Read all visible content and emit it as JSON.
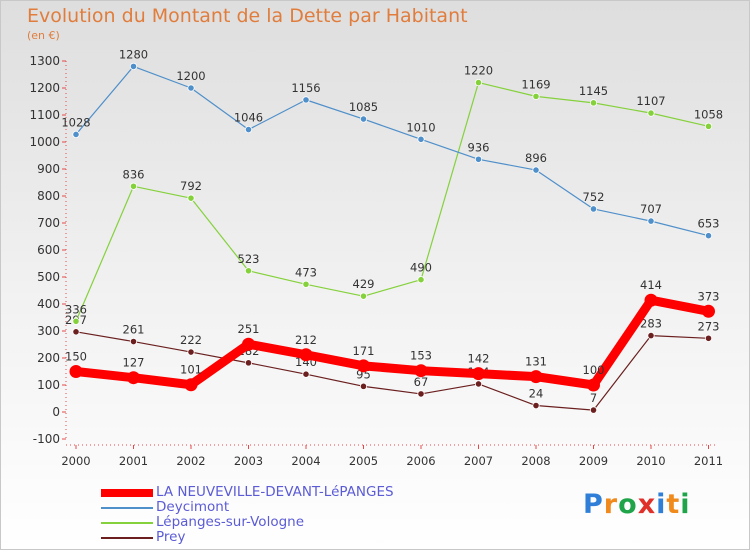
{
  "title": "Evolution du Montant de la Dette par Habitant",
  "subtitle": "(en €)",
  "logo_text": "Proxiti",
  "chart_data": {
    "type": "line",
    "ylim": [
      -100,
      1300
    ],
    "ytick_step": 100,
    "grid": false,
    "legend_position": "bottom-left",
    "x": [
      "2000",
      "2001",
      "2002",
      "2003",
      "2004",
      "2005",
      "2006",
      "2007",
      "2008",
      "2009",
      "2010",
      "2011"
    ],
    "series": [
      {
        "name": "LA NEUVEVILLE-DEVANT-LéPANGES",
        "color": "#ff0000",
        "values": [
          150,
          127,
          101,
          251,
          212,
          171,
          153,
          142,
          131,
          100,
          414,
          373
        ]
      },
      {
        "name": "Deycimont",
        "color": "#4f8fca",
        "values": [
          1028,
          1280,
          1200,
          1046,
          1156,
          1085,
          1010,
          936,
          896,
          752,
          707,
          653
        ]
      },
      {
        "name": "Lépanges-sur-Vologne",
        "color": "#85d13c",
        "values": [
          336,
          836,
          792,
          523,
          473,
          429,
          490,
          1220,
          1169,
          1145,
          1107,
          1058
        ]
      },
      {
        "name": "Prey",
        "color": "#6b1f1f",
        "values": [
          297,
          261,
          222,
          182,
          140,
          95,
          67,
          104,
          24,
          7,
          283,
          273
        ]
      }
    ]
  }
}
